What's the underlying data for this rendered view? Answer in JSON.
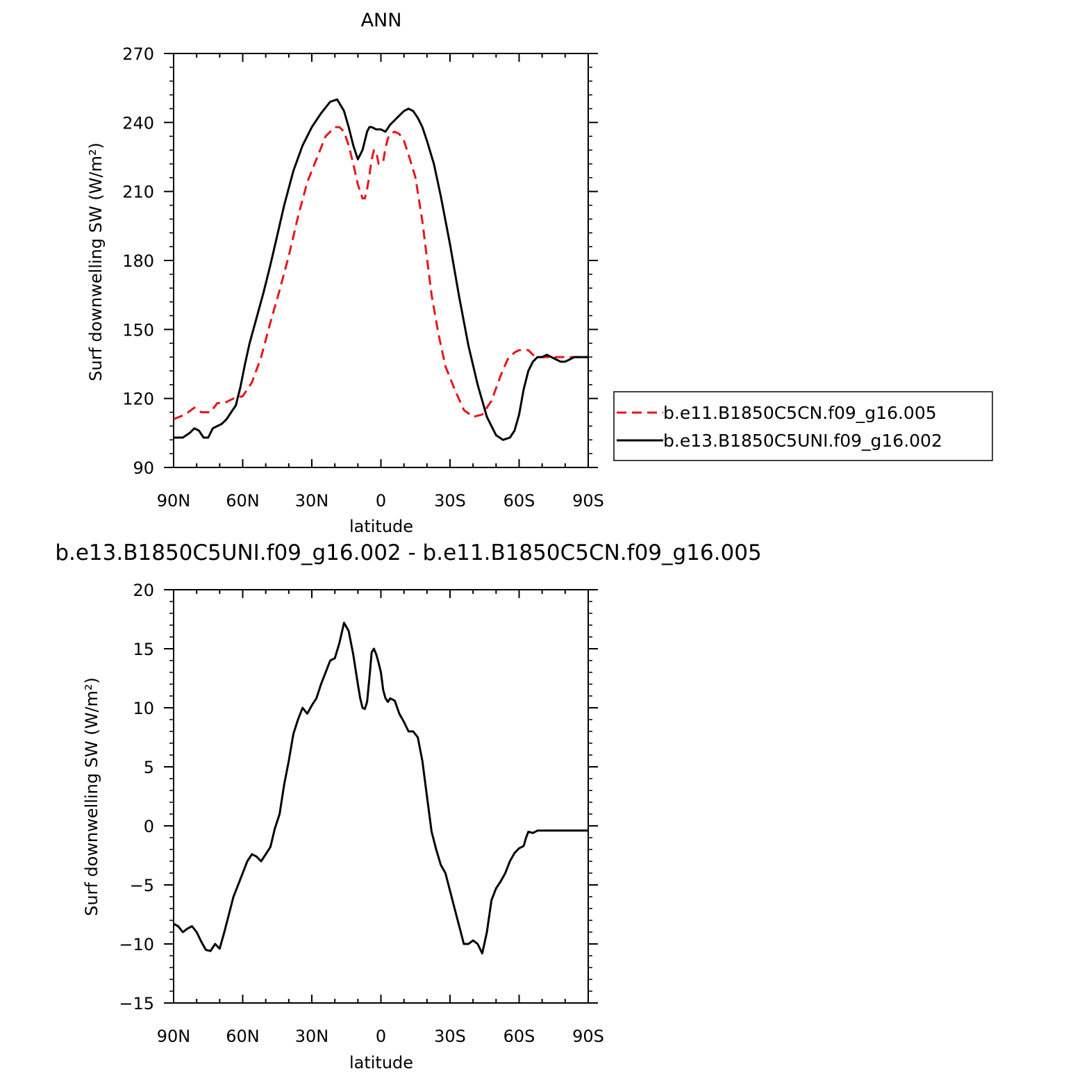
{
  "chart_data": [
    {
      "type": "line",
      "title": "ANN",
      "xlabel": "latitude",
      "ylabel": "Surf downwelling SW (W/m²)",
      "xlim": [
        90,
        -90
      ],
      "ylim": [
        90,
        270
      ],
      "x_ticks": [
        90,
        60,
        30,
        0,
        -30,
        -60,
        -90
      ],
      "x_tick_labels": [
        "90N",
        "60N",
        "30N",
        "0",
        "30S",
        "60S",
        "90S"
      ],
      "y_ticks": [
        90,
        120,
        150,
        180,
        210,
        240,
        270
      ],
      "y_tick_labels": [
        "90",
        "120",
        "150",
        "180",
        "210",
        "240",
        "270"
      ],
      "grid": false,
      "legend": "right",
      "series": [
        {
          "name": "b.e11.B1850C5CN.f09_g16.005",
          "color": "#e8141a",
          "style": "dashed",
          "x": [
            90,
            85,
            81,
            78,
            74,
            71,
            68,
            64,
            60,
            56,
            52,
            48,
            44,
            40,
            36,
            32,
            28,
            24,
            20,
            18,
            16,
            14,
            12,
            10,
            8,
            7,
            6,
            5,
            4,
            3,
            2,
            1,
            0,
            -1,
            -2,
            -3,
            -4,
            -6,
            -8,
            -10,
            -12,
            -15,
            -18,
            -20,
            -22,
            -25,
            -28,
            -32,
            -36,
            -40,
            -44,
            -48,
            -52,
            -55,
            -58,
            -60,
            -62,
            -64,
            -66,
            -68,
            -70,
            -72,
            -75,
            -78,
            -80,
            -82,
            -84,
            -86,
            -88,
            -90
          ],
          "y": [
            111,
            113,
            116,
            114,
            114,
            118,
            118,
            120,
            121,
            127,
            138,
            153,
            167,
            182,
            199,
            214,
            224,
            234,
            238,
            238,
            236,
            230,
            222,
            213,
            207,
            207,
            211,
            217,
            224,
            228,
            227,
            222,
            222,
            223,
            229,
            233,
            235,
            236,
            235,
            232,
            226,
            216,
            197,
            181,
            165,
            148,
            134,
            124,
            115,
            112,
            113,
            119,
            130,
            137,
            140,
            141,
            141,
            141,
            139,
            138,
            138,
            138,
            138,
            138,
            138,
            138,
            138,
            138,
            138,
            138
          ]
        },
        {
          "name": "b.e13.B1850C5UNI.f09_g16.002",
          "color": "#000000",
          "style": "solid",
          "x": [
            90,
            86,
            83,
            81,
            79,
            77,
            75,
            73,
            71,
            69,
            67,
            65,
            63,
            61,
            59,
            57,
            54,
            51,
            48,
            45,
            42,
            38,
            34,
            30,
            26,
            22,
            19,
            16,
            14,
            12,
            10,
            8,
            6,
            5,
            4,
            2,
            0,
            -2,
            -4,
            -6,
            -8,
            -10,
            -12,
            -14,
            -16,
            -18,
            -20,
            -23,
            -26,
            -30,
            -34,
            -38,
            -42,
            -46,
            -50,
            -53,
            -56,
            -58,
            -60,
            -62,
            -64,
            -66,
            -68,
            -70,
            -72,
            -74,
            -76,
            -78,
            -80,
            -82,
            -84,
            -86,
            -88,
            -90
          ],
          "y": [
            103,
            103,
            105,
            107,
            106,
            103,
            103,
            107,
            108,
            109,
            111,
            114,
            117,
            125,
            135,
            144,
            155,
            166,
            178,
            191,
            204,
            219,
            230,
            238,
            244,
            249,
            250,
            245,
            238,
            230,
            224,
            228,
            236,
            238,
            238,
            237,
            237,
            236,
            239,
            241,
            243,
            245,
            246,
            245,
            242,
            238,
            232,
            222,
            208,
            187,
            164,
            143,
            126,
            112,
            104,
            102,
            103,
            106,
            113,
            124,
            132,
            136,
            138,
            138,
            139,
            138,
            137,
            136,
            136,
            137,
            138,
            138,
            138,
            138
          ]
        }
      ]
    },
    {
      "type": "line",
      "title": "b.e13.B1850C5UNI.f09_g16.002 - b.e11.B1850C5CN.f09_g16.005",
      "xlabel": "latitude",
      "ylabel": "Surf downwelling SW (W/m²)",
      "xlim": [
        90,
        -90
      ],
      "ylim": [
        -15,
        20
      ],
      "x_ticks": [
        90,
        60,
        30,
        0,
        -30,
        -60,
        -90
      ],
      "x_tick_labels": [
        "90N",
        "60N",
        "30N",
        "0",
        "30S",
        "60S",
        "90S"
      ],
      "y_ticks": [
        -15,
        -10,
        -5,
        0,
        5,
        10,
        15,
        20
      ],
      "y_tick_labels": [
        "−15",
        "−10",
        "−5",
        "0",
        "5",
        "10",
        "15",
        "20"
      ],
      "grid": false,
      "series": [
        {
          "name": "",
          "color": "#000000",
          "style": "solid",
          "x": [
            90,
            88,
            86,
            84,
            82,
            80,
            78,
            76,
            74,
            72,
            70,
            68,
            66,
            64,
            62,
            60,
            58,
            56,
            54,
            52,
            50,
            48,
            46,
            44,
            42,
            40,
            38,
            36,
            34,
            32,
            30,
            28,
            26,
            24,
            22,
            20,
            18,
            16,
            14,
            12,
            10,
            9,
            8,
            7,
            6,
            5,
            4,
            3,
            2,
            1,
            0,
            -1,
            -2,
            -3,
            -4,
            -5,
            -6,
            -8,
            -10,
            -12,
            -14,
            -16,
            -18,
            -20,
            -22,
            -24,
            -26,
            -28,
            -30,
            -32,
            -34,
            -36,
            -38,
            -40,
            -42,
            -44,
            -46,
            -48,
            -50,
            -52,
            -54,
            -56,
            -58,
            -60,
            -62,
            -63,
            -64,
            -66,
            -68,
            -70,
            -72,
            -74,
            -76,
            -78,
            -80,
            -82,
            -84,
            -86,
            -88,
            -90
          ],
          "y": [
            -8.3,
            -8.5,
            -9.0,
            -8.7,
            -8.5,
            -9.0,
            -9.8,
            -10.5,
            -10.6,
            -10.0,
            -10.4,
            -9.0,
            -7.5,
            -6.0,
            -5.0,
            -4.0,
            -3.0,
            -2.4,
            -2.6,
            -3.0,
            -2.4,
            -1.8,
            -0.2,
            1.0,
            3.5,
            5.5,
            7.8,
            9.0,
            10.0,
            9.5,
            10.2,
            10.8,
            12.0,
            13.0,
            14.0,
            14.2,
            15.5,
            17.2,
            16.5,
            14.5,
            12.0,
            10.8,
            10.0,
            9.9,
            10.5,
            12.5,
            14.7,
            15.0,
            14.5,
            13.8,
            13.0,
            11.5,
            10.8,
            10.5,
            10.8,
            10.7,
            10.6,
            9.5,
            8.8,
            8.0,
            8.0,
            7.5,
            5.5,
            2.5,
            -0.5,
            -2.0,
            -3.3,
            -4.0,
            -5.5,
            -7.0,
            -8.5,
            -10.0,
            -10.0,
            -9.7,
            -10.0,
            -10.8,
            -9.0,
            -6.3,
            -5.3,
            -4.7,
            -4.0,
            -3.0,
            -2.3,
            -1.9,
            -1.7,
            -1.0,
            -0.5,
            -0.6,
            -0.4,
            -0.4,
            -0.4,
            -0.4,
            -0.4,
            -0.4,
            -0.4,
            -0.4,
            -0.4,
            -0.4,
            -0.4,
            -0.4
          ]
        }
      ]
    }
  ]
}
